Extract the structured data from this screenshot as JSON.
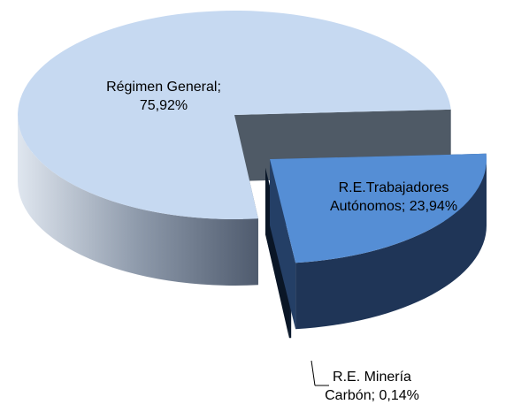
{
  "chart_data": {
    "type": "pie3d",
    "categories": [
      "Régimen General",
      "R.E.Trabajadores Autónomos",
      "R.E. Minería Carbón"
    ],
    "values": [
      75.92,
      23.94,
      0.14
    ],
    "value_labels": [
      "75,92%",
      "23,94%",
      "0,14%"
    ],
    "separator": ";",
    "colors": [
      "#c6d9f1",
      "#558ed5",
      "#17375e"
    ]
  }
}
